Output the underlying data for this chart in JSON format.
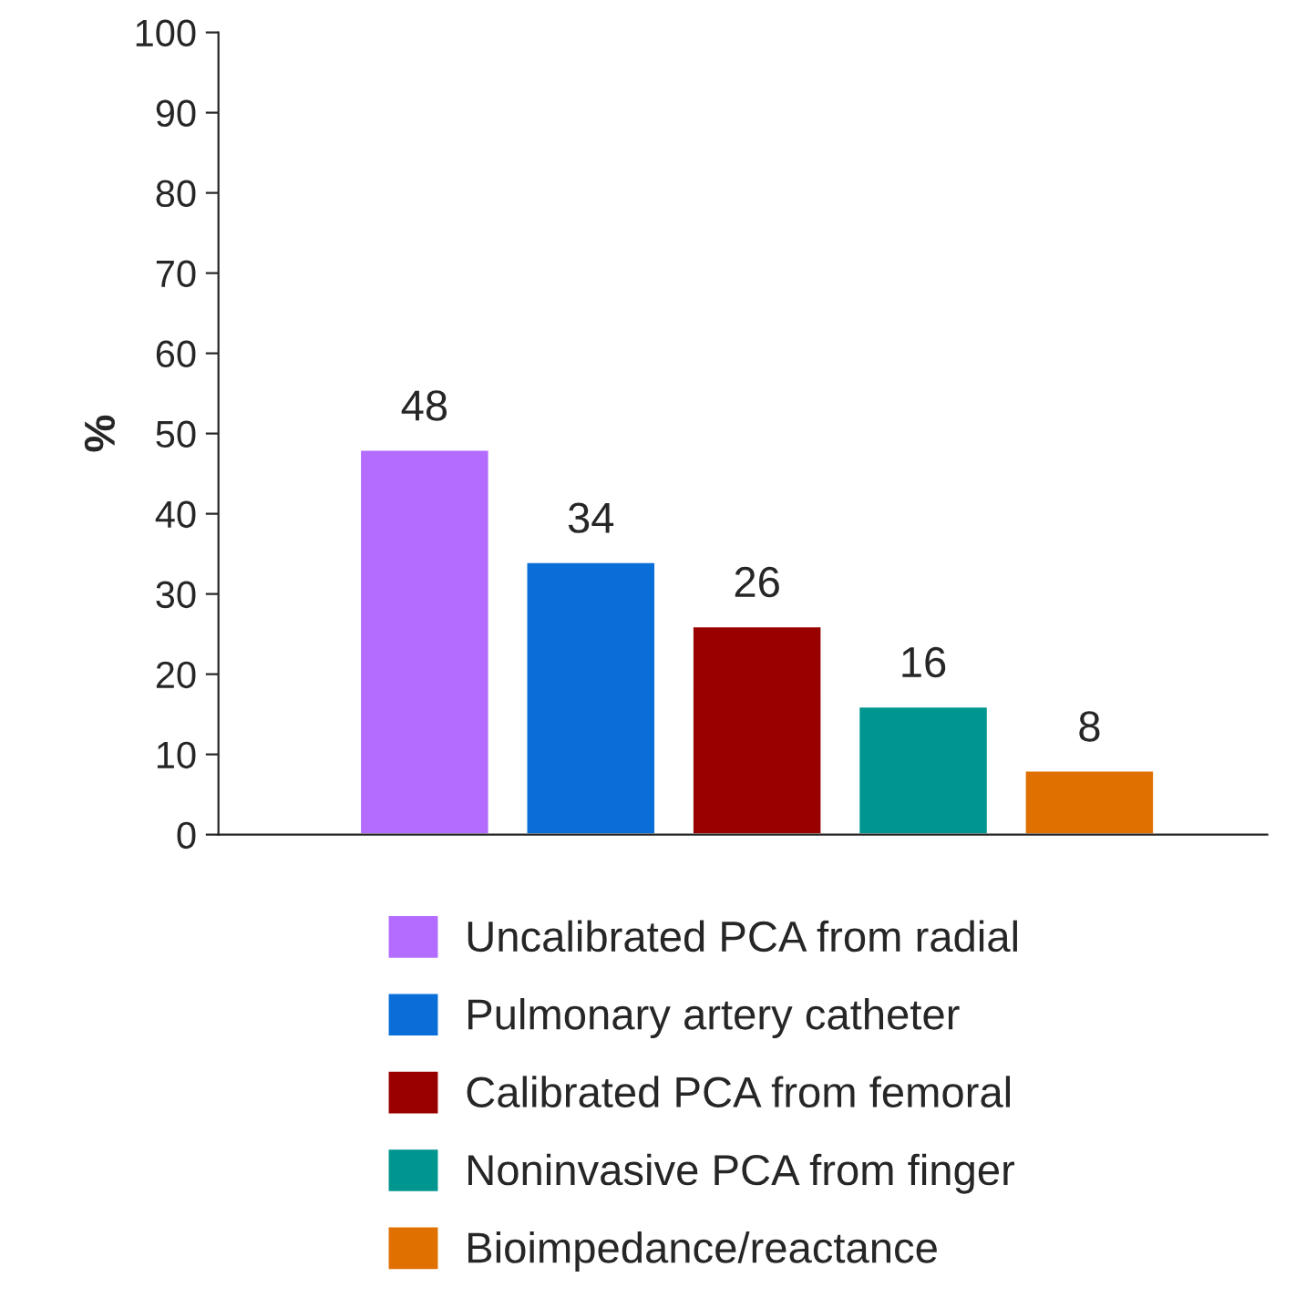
{
  "chart_data": {
    "type": "bar",
    "ylabel": "%",
    "categories": [
      null,
      null,
      null,
      null,
      null
    ],
    "series": [
      {
        "name": "Uncalibrated PCA from radial",
        "color": "#b36cff",
        "values": [
          48,
          null,
          null,
          null,
          null
        ]
      },
      {
        "name": "Pulmonary artery catheter",
        "color": "#0a6ed8",
        "values": [
          null,
          34,
          null,
          null,
          null
        ]
      },
      {
        "name": "Calibrated PCA from femoral",
        "color": "#990000",
        "values": [
          null,
          null,
          26,
          null,
          null
        ]
      },
      {
        "name": "Noninvasive PCA from finger",
        "color": "#00958f",
        "values": [
          null,
          null,
          null,
          16,
          null
        ]
      },
      {
        "name": "Bioimpedance/reactance",
        "color": "#e07000",
        "values": [
          null,
          null,
          null,
          null,
          8
        ]
      }
    ],
    "ylim": [
      0,
      100
    ],
    "yticks": [
      0,
      10,
      20,
      30,
      40,
      50,
      60,
      70,
      80,
      90,
      100
    ],
    "data_labels": true,
    "grid": false,
    "legend": "bottom"
  }
}
